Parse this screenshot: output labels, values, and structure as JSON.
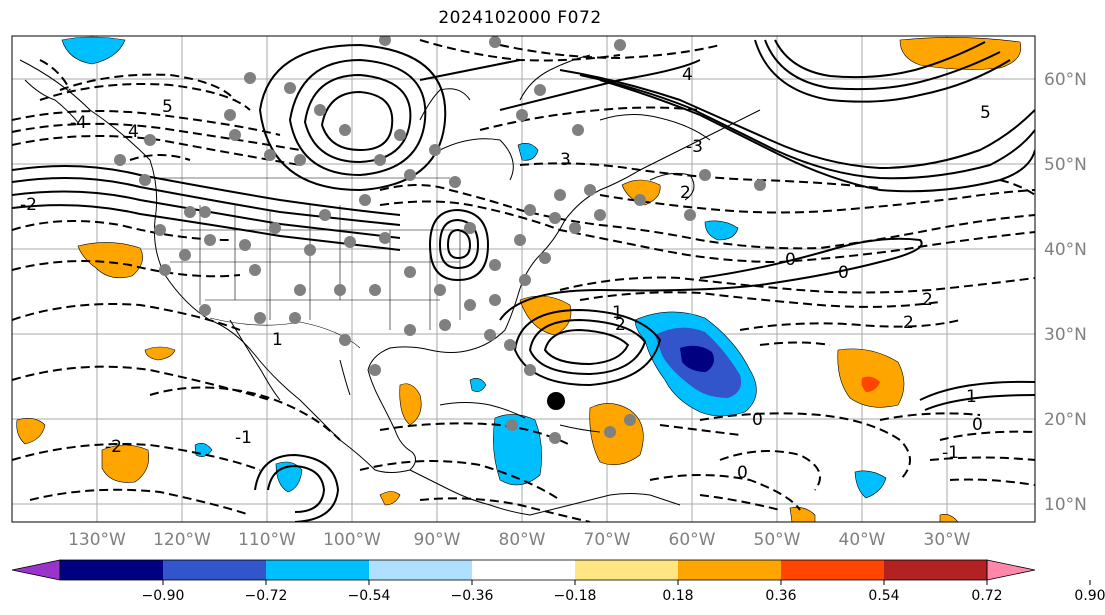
{
  "title": "2024102000 F072",
  "longitude_labels": [
    "130°W",
    "120°W",
    "110°W",
    "100°W",
    "90°W",
    "80°W",
    "70°W",
    "60°W",
    "50°W",
    "40°W",
    "30°W"
  ],
  "latitude_labels": [
    "60°N",
    "50°N",
    "40°N",
    "30°N",
    "20°N",
    "10°N"
  ],
  "colorbar": {
    "ticks": [
      "−0.90",
      "−0.72",
      "−0.54",
      "−0.36",
      "−0.18",
      "0.18",
      "0.36",
      "0.54",
      "0.72",
      "0.90"
    ],
    "colors": [
      "#9933cc",
      "#000080",
      "#3355cc",
      "#00bfff",
      "#b0e0ff",
      "#ffffff",
      "#ffe680",
      "#ffa500",
      "#ff4500",
      "#b22222",
      "#ff88aa"
    ],
    "extend": "both"
  },
  "contour_labels": [
    "5",
    "4",
    "3",
    "2",
    "1",
    "0",
    "0",
    "-1",
    "-2",
    "-3",
    "-4",
    "5",
    "4",
    "1",
    "0",
    "0",
    "-1",
    "2",
    "2",
    "1",
    "2",
    "0",
    "-2"
  ],
  "colors": {
    "land_outline": "#000000",
    "grid": "#a0a0a0",
    "station_dot": "#808080",
    "positive_fill": "#ffa500",
    "negative_fill": "#00bfff"
  }
}
